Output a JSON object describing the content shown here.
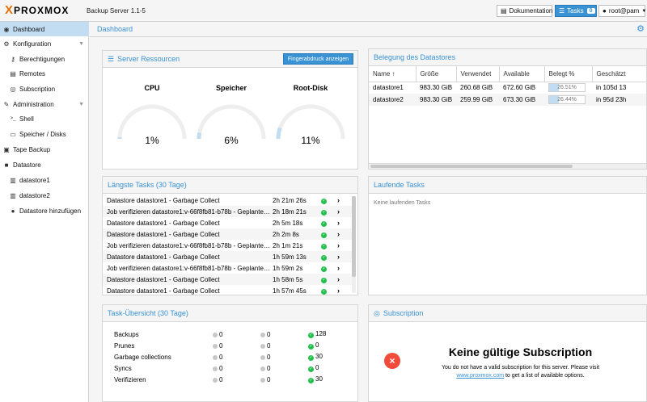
{
  "topbar": {
    "logo_mark": "X",
    "logo_text": "PROXMOX",
    "app_version": "Backup Server 1.1-5",
    "doc_label": "Dokumentation",
    "tasks_label": "Tasks",
    "tasks_count": "0",
    "user_label": "root@pam"
  },
  "sidebar": {
    "items": [
      {
        "label": "Dashboard",
        "icon": "dashboard-icon",
        "glyph": "◉"
      },
      {
        "label": "Konfiguration",
        "icon": "gears-icon",
        "glyph": "⚙"
      },
      {
        "label": "Berechtigungen",
        "icon": "key-icon",
        "glyph": "⚷"
      },
      {
        "label": "Remotes",
        "icon": "server-icon",
        "glyph": "▤"
      },
      {
        "label": "Subscription",
        "icon": "support-icon",
        "glyph": "◎"
      },
      {
        "label": "Administration",
        "icon": "wrench-icon",
        "glyph": "✎"
      },
      {
        "label": "Shell",
        "icon": "terminal-icon",
        "glyph": ">_"
      },
      {
        "label": "Speicher / Disks",
        "icon": "disk-icon",
        "glyph": "▭"
      },
      {
        "label": "Tape Backup",
        "icon": "tape-icon",
        "glyph": "▣"
      },
      {
        "label": "Datastore",
        "icon": "archive-icon",
        "glyph": "■"
      },
      {
        "label": "datastore1",
        "icon": "database-icon",
        "glyph": "▥"
      },
      {
        "label": "datastore2",
        "icon": "database-icon",
        "glyph": "▥"
      },
      {
        "label": "Datastore hinzufügen",
        "icon": "plus-circle-icon",
        "glyph": "●"
      }
    ]
  },
  "main": {
    "title": "Dashboard"
  },
  "server_resources": {
    "title": "Server Ressourcen",
    "fingerprint_label": "Fingerabdruck anzeigen",
    "gauges": [
      {
        "label": "CPU",
        "value": "1%",
        "percent": 1
      },
      {
        "label": "Speicher",
        "value": "6%",
        "percent": 6
      },
      {
        "label": "Root-Disk",
        "value": "11%",
        "percent": 11
      }
    ]
  },
  "datastore_usage": {
    "title": "Belegung des Datastores",
    "columns": [
      "Name ↑",
      "Größe",
      "Verwendet",
      "Available",
      "Belegt %",
      "Geschätzt"
    ],
    "rows": [
      {
        "name": "datastore1",
        "size": "983.30 GiB",
        "used": "260.68 GiB",
        "available": "672.60 GiB",
        "usage": "26.51%",
        "usage_percent": 26.51,
        "estimate": "in 105d 13"
      },
      {
        "name": "datastore2",
        "size": "983.30 GiB",
        "used": "259.99 GiB",
        "available": "673.30 GiB",
        "usage": "26.44%",
        "usage_percent": 26.44,
        "estimate": "in 95d 23h"
      }
    ]
  },
  "longest_tasks": {
    "title": "Längste Tasks (30 Tage)",
    "rows": [
      {
        "name": "Datastore datastore1 - Garbage Collect",
        "duration": "2h 21m 26s"
      },
      {
        "name": "Job verifizieren datastore1:v-66f8fb81-b78b - Geplante…",
        "duration": "2h 18m 21s"
      },
      {
        "name": "Datastore datastore1 - Garbage Collect",
        "duration": "2h 5m 18s"
      },
      {
        "name": "Datastore datastore1 - Garbage Collect",
        "duration": "2h 2m 8s"
      },
      {
        "name": "Job verifizieren datastore1:v-66f8fb81-b78b - Geplante…",
        "duration": "2h 1m 21s"
      },
      {
        "name": "Datastore datastore1 - Garbage Collect",
        "duration": "1h 59m 13s"
      },
      {
        "name": "Job verifizieren datastore1:v-66f8fb81-b78b - Geplante…",
        "duration": "1h 59m 2s"
      },
      {
        "name": "Datastore datastore1 - Garbage Collect",
        "duration": "1h 58m 5s"
      },
      {
        "name": "Datastore datastore1 - Garbage Collect",
        "duration": "1h 57m 45s"
      }
    ]
  },
  "running_tasks": {
    "title": "Laufende Tasks",
    "empty_text": "Keine laufenden Tasks"
  },
  "task_summary": {
    "title": "Task-Übersicht (30 Tage)",
    "rows": [
      {
        "label": "Backups",
        "error": "0",
        "warning": "0",
        "ok": "128"
      },
      {
        "label": "Prunes",
        "error": "0",
        "warning": "0",
        "ok": "0"
      },
      {
        "label": "Garbage collections",
        "error": "0",
        "warning": "0",
        "ok": "30"
      },
      {
        "label": "Syncs",
        "error": "0",
        "warning": "0",
        "ok": "0"
      },
      {
        "label": "Verifizieren",
        "error": "0",
        "warning": "0",
        "ok": "30"
      }
    ]
  },
  "subscription": {
    "title": "Subscription",
    "heading": "Keine gültige Subscription",
    "text1": "You do not have a valid subscription for this server. Please visit",
    "link": "www.proxmox.com",
    "text2": " to get a list of available options."
  },
  "colors": {
    "accent": "#3892d4",
    "ok": "#21bf4b",
    "error": "#f04c3b",
    "brand": "#e57000"
  }
}
